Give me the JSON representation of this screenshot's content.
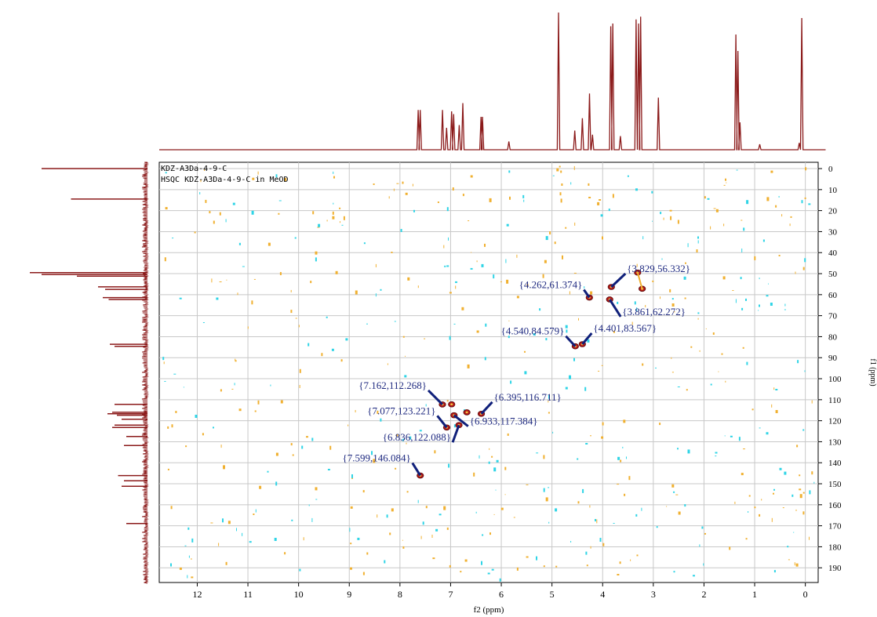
{
  "caption": "",
  "chart_data": {
    "type": "scatter",
    "subtype": "2D HSQC NMR spectrum with projections",
    "header_lines": [
      "KDZ-A3Da-4-9-C",
      "HSQC KDZ-A3Da-4-9-C in MeOD"
    ],
    "xlabel": "f2 (ppm)",
    "ylabel": "f1 (ppm)",
    "xlim": [
      12.75,
      -0.4
    ],
    "ylim": [
      -3,
      197
    ],
    "x_reversed": true,
    "x_ticks": [
      12,
      11,
      10,
      9,
      8,
      7,
      6,
      5,
      4,
      3,
      2,
      1,
      0
    ],
    "y_ticks": [
      0,
      10,
      20,
      30,
      40,
      50,
      60,
      70,
      80,
      90,
      100,
      110,
      120,
      130,
      140,
      150,
      160,
      170,
      180,
      190
    ],
    "grid": true,
    "colors": {
      "projection": "#8b1a1a",
      "peak": "#b01818",
      "label": "#1f2a80",
      "arrow": "#10207a",
      "noise_cyan": "#2fd4e6",
      "noise_orange": "#f0b030",
      "grid": "#c8c8c8"
    },
    "peaks": [
      {
        "label": "{3.829,56.332}",
        "x": 3.829,
        "y": 56.332
      },
      {
        "label": "{4.262,61.374}",
        "x": 4.262,
        "y": 61.374
      },
      {
        "label": "{3.861,62.272}",
        "x": 3.861,
        "y": 62.272
      },
      {
        "label": "{4.540,84.579}",
        "x": 4.54,
        "y": 84.579
      },
      {
        "label": "{4.401,83.567}",
        "x": 4.401,
        "y": 83.567
      },
      {
        "label": "{7.162,112.268}",
        "x": 7.162,
        "y": 112.268
      },
      {
        "label": "{6.395,116.711}",
        "x": 6.395,
        "y": 116.711
      },
      {
        "label": "{7.077,123.221}",
        "x": 7.077,
        "y": 123.221
      },
      {
        "label": "{6.933,117.384}",
        "x": 6.933,
        "y": 117.384
      },
      {
        "label": "{6.836,122.088}",
        "x": 6.836,
        "y": 122.088
      },
      {
        "label": "{7.599,146.084}",
        "x": 7.599,
        "y": 146.084
      }
    ],
    "unlabeled_peaks": [
      {
        "x": 3.31,
        "y": 49.5
      },
      {
        "x": 3.22,
        "y": 57.2
      },
      {
        "x": 6.68,
        "y": 116.0
      },
      {
        "x": 6.98,
        "y": 112.2
      }
    ],
    "h1_projection": [
      {
        "x": 7.64,
        "h": 0.29
      },
      {
        "x": 7.6,
        "h": 0.29
      },
      {
        "x": 7.16,
        "h": 0.29
      },
      {
        "x": 7.08,
        "h": 0.16
      },
      {
        "x": 6.98,
        "h": 0.28
      },
      {
        "x": 6.94,
        "h": 0.26
      },
      {
        "x": 6.83,
        "h": 0.18
      },
      {
        "x": 6.76,
        "h": 0.34
      },
      {
        "x": 6.4,
        "h": 0.24
      },
      {
        "x": 6.37,
        "h": 0.24
      },
      {
        "x": 5.85,
        "h": 0.06
      },
      {
        "x": 4.87,
        "h": 1.0
      },
      {
        "x": 4.55,
        "h": 0.14
      },
      {
        "x": 4.4,
        "h": 0.23
      },
      {
        "x": 4.26,
        "h": 0.41
      },
      {
        "x": 4.2,
        "h": 0.11
      },
      {
        "x": 3.84,
        "h": 0.9
      },
      {
        "x": 3.8,
        "h": 0.92
      },
      {
        "x": 3.65,
        "h": 0.1
      },
      {
        "x": 3.34,
        "h": 0.95
      },
      {
        "x": 3.29,
        "h": 0.92
      },
      {
        "x": 3.25,
        "h": 0.97
      },
      {
        "x": 2.9,
        "h": 0.38
      },
      {
        "x": 1.37,
        "h": 0.84
      },
      {
        "x": 1.33,
        "h": 0.72
      },
      {
        "x": 1.29,
        "h": 0.2
      },
      {
        "x": 0.9,
        "h": 0.04
      },
      {
        "x": 0.12,
        "h": 0.05
      },
      {
        "x": 0.07,
        "h": 0.96
      }
    ],
    "c13_projection": [
      {
        "y": 0,
        "w": 0.9
      },
      {
        "y": 14.5,
        "w": 0.65
      },
      {
        "y": 49.5,
        "w": 1.0
      },
      {
        "y": 50.4,
        "w": 0.9
      },
      {
        "y": 51.2,
        "w": 0.6
      },
      {
        "y": 56.3,
        "w": 0.42
      },
      {
        "y": 57.5,
        "w": 0.36
      },
      {
        "y": 61.4,
        "w": 0.38
      },
      {
        "y": 62.3,
        "w": 0.33
      },
      {
        "y": 83.6,
        "w": 0.32
      },
      {
        "y": 84.6,
        "w": 0.28
      },
      {
        "y": 112.2,
        "w": 0.28
      },
      {
        "y": 116.0,
        "w": 0.3
      },
      {
        "y": 116.7,
        "w": 0.34
      },
      {
        "y": 117.4,
        "w": 0.26
      },
      {
        "y": 119.3,
        "w": 0.22
      },
      {
        "y": 122.1,
        "w": 0.28
      },
      {
        "y": 123.2,
        "w": 0.3
      },
      {
        "y": 127.5,
        "w": 0.18
      },
      {
        "y": 131.8,
        "w": 0.2
      },
      {
        "y": 146.1,
        "w": 0.25
      },
      {
        "y": 148.6,
        "w": 0.2
      },
      {
        "y": 151.2,
        "w": 0.22
      },
      {
        "y": 168.9,
        "w": 0.18
      }
    ]
  }
}
